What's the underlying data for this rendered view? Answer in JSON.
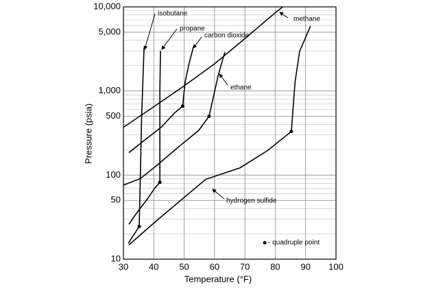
{
  "chart_data": {
    "type": "line",
    "xlabel": "Temperature (°F)",
    "ylabel": "Pressure (psia)",
    "xlim": [
      30,
      100
    ],
    "xticks": [
      30,
      40,
      50,
      60,
      70,
      80,
      90,
      100
    ],
    "ylim": [
      10,
      10000
    ],
    "log_y": true,
    "yticks": [
      10,
      50,
      100,
      500,
      {
        "value": 1000,
        "label": "1,000"
      },
      {
        "value": 5000,
        "label": "5,000"
      },
      {
        "value": 10000,
        "label": "10,000"
      }
    ],
    "y_minor_ticks": [
      20,
      30,
      40,
      60,
      70,
      80,
      90,
      200,
      300,
      400,
      600,
      700,
      800,
      900,
      2000,
      3000,
      4000,
      6000,
      7000,
      8000,
      9000
    ],
    "grid": true,
    "color": "#000000",
    "quadruple_label": "- quadruple point",
    "series": [
      {
        "name": "methane",
        "x": [
          30,
          40,
          50,
          60,
          70,
          80,
          82.5
        ],
        "values": [
          370,
          650,
          1150,
          2100,
          4200,
          8500,
          10000
        ]
      },
      {
        "name": "ethane",
        "x": [
          30,
          35.6,
          41.3,
          48,
          54.8,
          58.2,
          61.2,
          63.4
        ],
        "values": [
          76,
          91,
          133,
          214,
          340,
          500,
          1530,
          2900
        ],
        "quadruple_point": 5
      },
      {
        "name": "propane",
        "x": [
          31.8,
          34.5,
          37.9,
          40.2,
          42,
          42,
          42.2
        ],
        "values": [
          26,
          36,
          52,
          69,
          82,
          1000,
          3000
        ],
        "quadruple_point": 4
      },
      {
        "name": "isobutane",
        "x": [
          31.6,
          35.2,
          36,
          36.8
        ],
        "values": [
          15.5,
          24.5,
          500,
          3300
        ],
        "quadruple_point": 1
      },
      {
        "name": "carbon dioxide",
        "x": [
          31.8,
          36.8,
          42.4,
          46.9,
          49.5,
          50.3,
          51.5,
          53.1
        ],
        "values": [
          185,
          257,
          370,
          550,
          660,
          1270,
          2030,
          3400
        ],
        "quadruple_point": 4
      },
      {
        "name": "hydrogen sulfide",
        "x": [
          31.8,
          41.3,
          57.1,
          68.4,
          77.4,
          85.3,
          86.5,
          88,
          91.6
        ],
        "values": [
          14.8,
          29.5,
          89,
          122,
          195,
          330,
          1260,
          2950,
          5900
        ],
        "quadruple_point": 5
      }
    ]
  }
}
